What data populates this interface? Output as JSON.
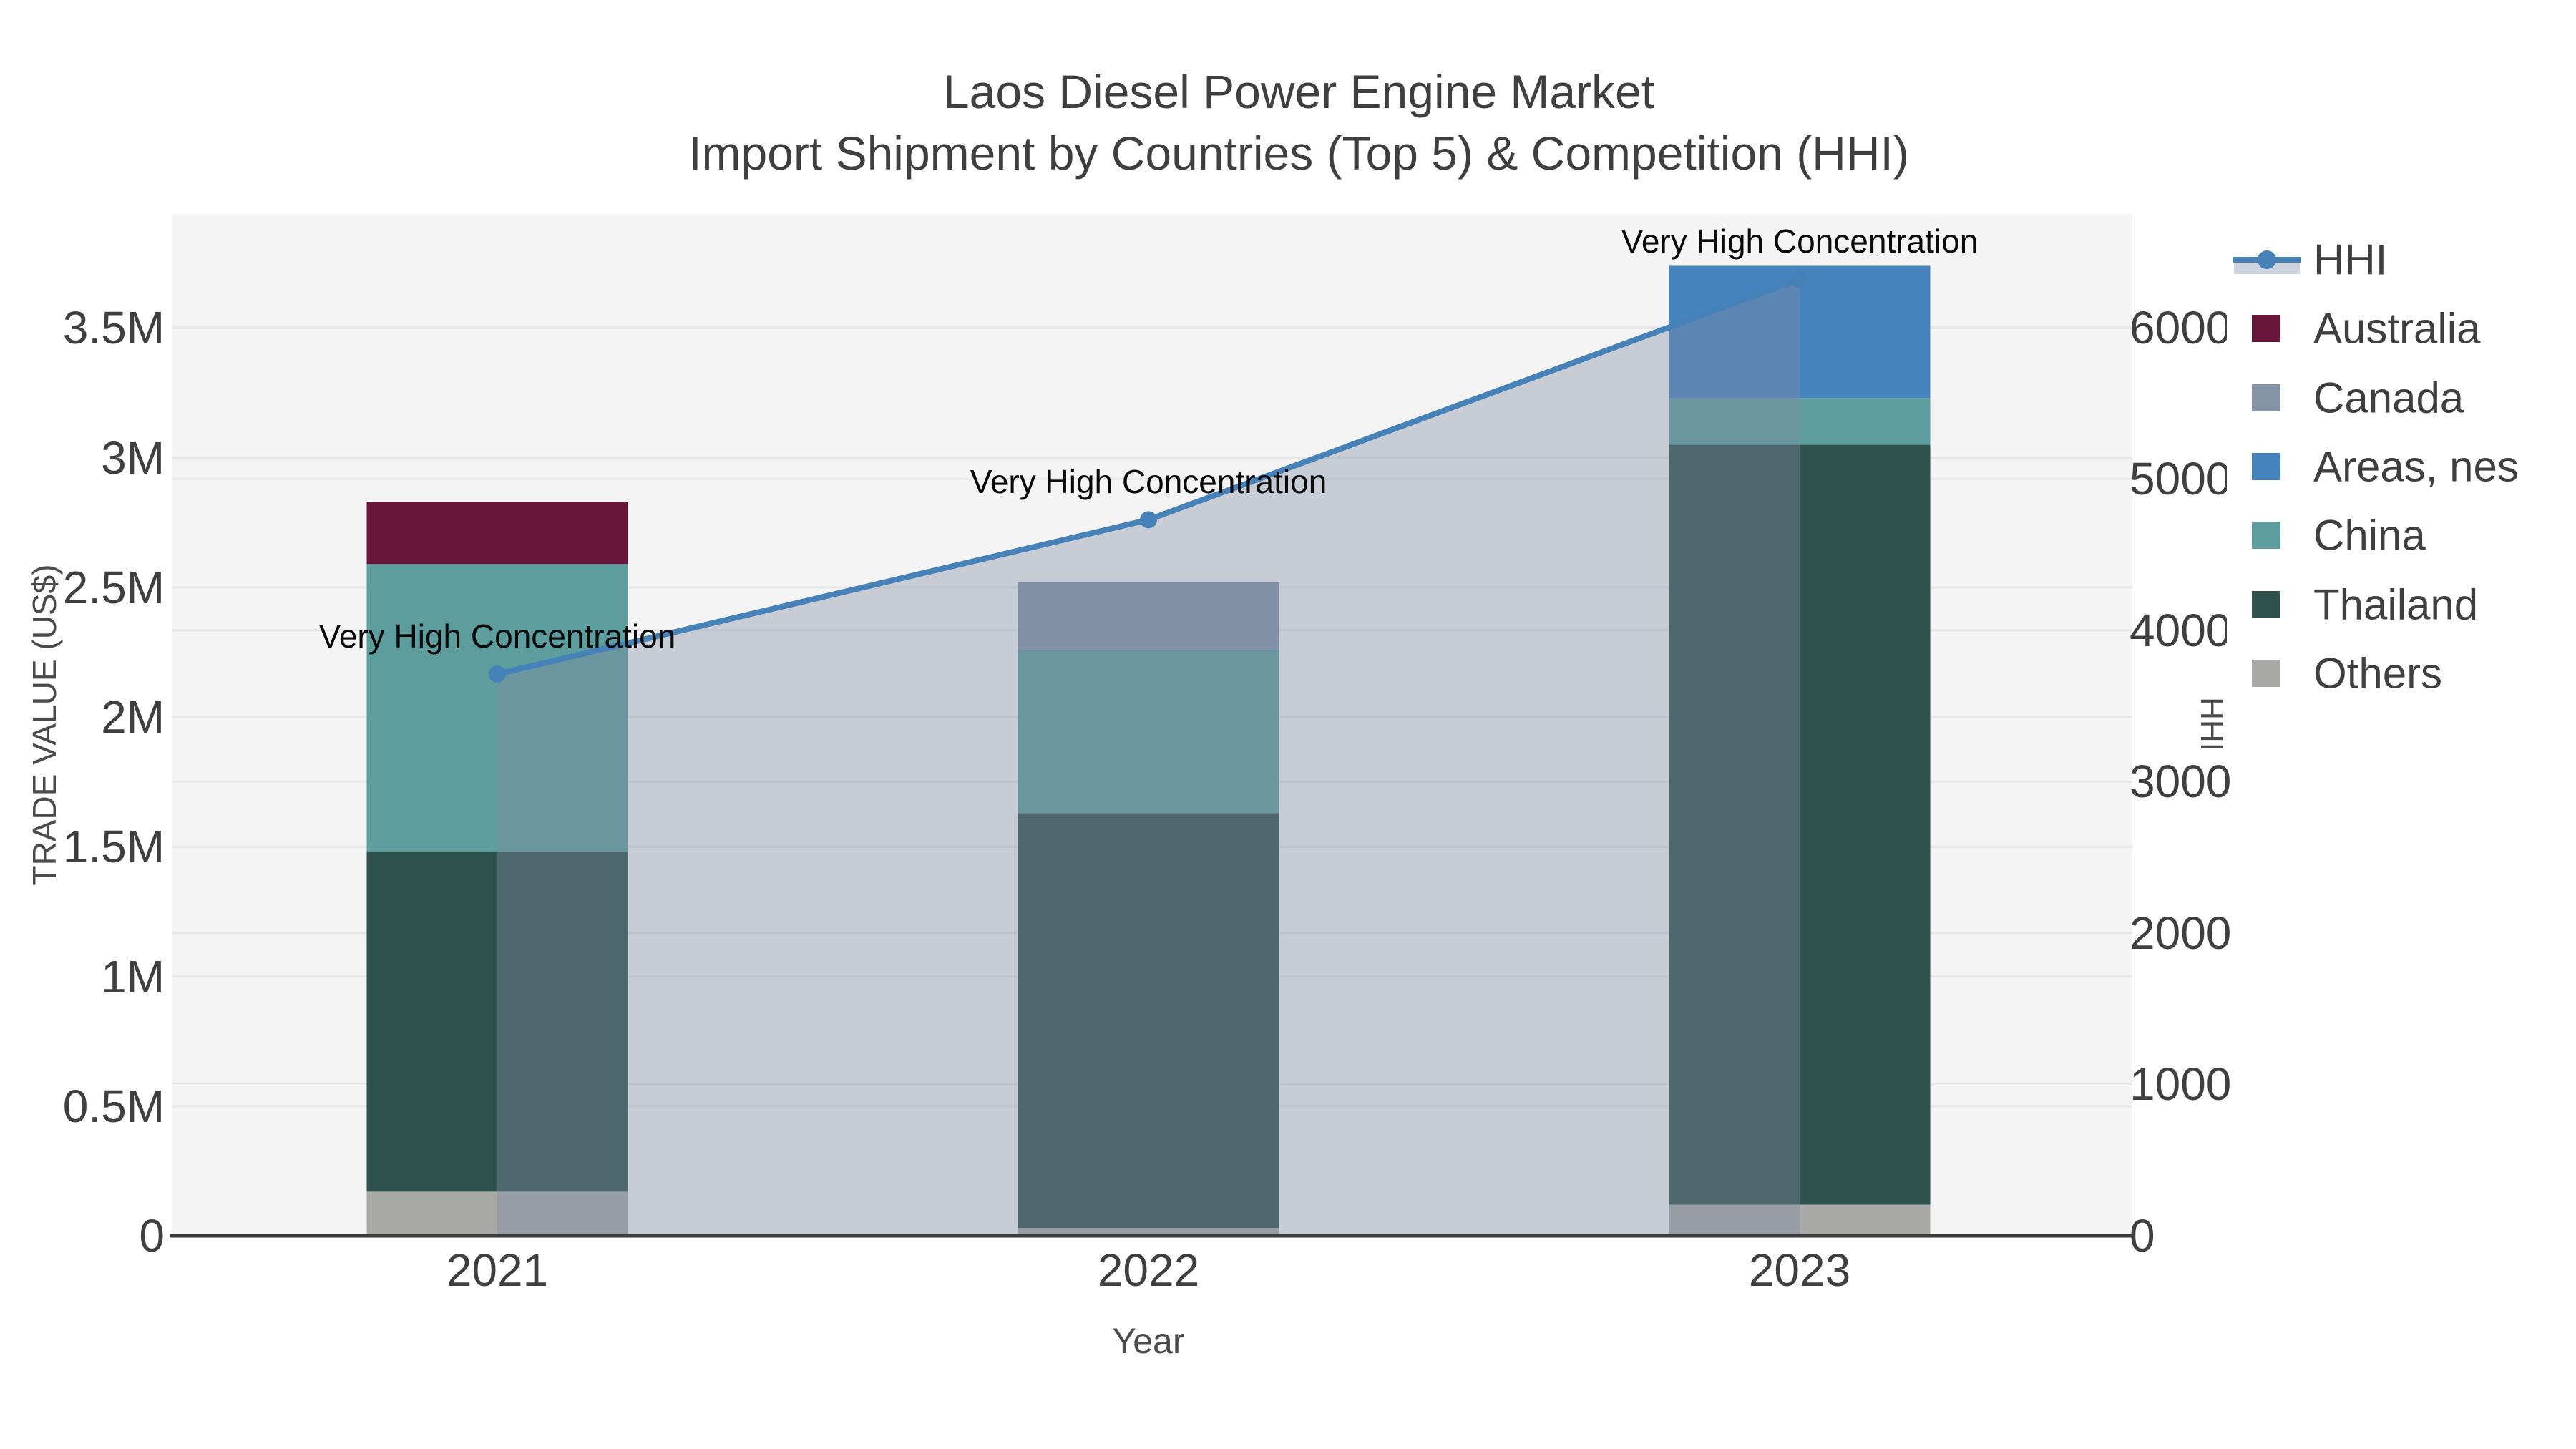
{
  "title": "Laos Diesel Power Engine Market",
  "subtitle": "Import Shipment by Countries (Top 5) & Competition (HHI)",
  "chart_data": {
    "type": "bar",
    "subtype": "stacked-bar-with-line-area-combo",
    "categories": [
      "2021",
      "2022",
      "2023"
    ],
    "title": "Laos Diesel Power Engine Market",
    "subtitle": "Import Shipment by Countries (Top 5) & Competition (HHI)",
    "xlabel": "Year",
    "ylabel_left": "TRADE VALUE (US$)",
    "ylabel_right": "HHI",
    "bar_value_unit": "million US$",
    "stack_order_bottom_to_top": [
      "Others",
      "Thailand",
      "China",
      "Australia",
      "Canada",
      "Areas, nes"
    ],
    "series": [
      {
        "name": "Australia",
        "color": "#681639",
        "values_musd": [
          0.24,
          0,
          0
        ]
      },
      {
        "name": "Canada",
        "color": "#8494a6",
        "values_musd": [
          0,
          0.26,
          0
        ]
      },
      {
        "name": "Areas, nes",
        "color": "#4684bf",
        "values_musd": [
          0,
          0,
          0.51
        ]
      },
      {
        "name": "China",
        "color": "#5d9d9d",
        "values_musd": [
          1.11,
          0.63,
          0.18
        ]
      },
      {
        "name": "Thailand",
        "color": "#2f524d",
        "values_musd": [
          1.31,
          1.6,
          2.93
        ]
      },
      {
        "name": "Others",
        "color": "#a9a9a7",
        "values_musd": [
          0.17,
          0.03,
          0.12
        ]
      }
    ],
    "bar_totals_musd": [
      2.83,
      2.52,
      3.74
    ],
    "hhi_line": {
      "name": "HHI",
      "color": "#4681b8",
      "area_fill": "rgba(126,140,162,0.38)",
      "values": [
        3710,
        4730,
        6320
      ]
    },
    "ylim_left_musd": [
      0,
      3.94
    ],
    "ylim_right": [
      0,
      6750
    ],
    "yticks_left": {
      "values": [
        0,
        0.5,
        1,
        1.5,
        2,
        2.5,
        3,
        3.5
      ],
      "labels": [
        "0",
        "0.5M",
        "1M",
        "1.5M",
        "2M",
        "2.5M",
        "3M",
        "3.5M"
      ]
    },
    "yticks_right": {
      "values": [
        0,
        1000,
        2000,
        3000,
        4000,
        5000,
        6000
      ],
      "labels": [
        "0",
        "1000",
        "2000",
        "3000",
        "4000",
        "5000",
        "6000"
      ]
    },
    "grid": true,
    "legend_position": "right-top",
    "legend_order": [
      "HHI",
      "Australia",
      "Canada",
      "Areas, nes",
      "China",
      "Thailand",
      "Others"
    ],
    "annotations": [
      {
        "text": "Very High Concentration",
        "category": "2021",
        "hhi": 3710
      },
      {
        "text": "Very High Concentration",
        "category": "2022",
        "hhi": 4730
      },
      {
        "text": "Very High Concentration",
        "category": "2023",
        "hhi": 6320
      }
    ]
  },
  "colors": {
    "figure_background": "#ffffff",
    "plot_background": "#f4f4f4",
    "gridline": "#e6e6e6",
    "axis_line": "#3b3b3b",
    "title_text": "#3f3f3f",
    "tick_text": "#3f3f3f",
    "axis_title_text": "#4a4a4a",
    "annotation_text": "#0a0a0a",
    "legend_text": "#3f3f3f",
    "legend_hhi_band": "#ccd3dc"
  }
}
